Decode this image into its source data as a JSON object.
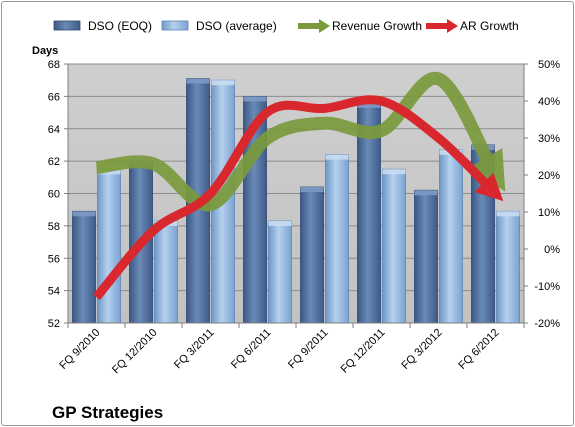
{
  "chart_data": {
    "type": "bar",
    "title": "",
    "caption": "GP Strategies",
    "categories": [
      "FQ 9/2010",
      "FQ 12/2010",
      "FQ 3/2011",
      "FQ 6/2011",
      "FQ 9/2011",
      "FQ 12/2011",
      "FQ 3/2012",
      "FQ 6/2012"
    ],
    "series": [
      {
        "name": "DSO (EOQ)",
        "kind": "bar",
        "axis": "left",
        "color": "#4f6f9f",
        "values": [
          58.9,
          62.0,
          67.1,
          66.0,
          60.4,
          65.6,
          60.2,
          63.0
        ]
      },
      {
        "name": "DSO (average)",
        "kind": "bar",
        "axis": "left",
        "color": "#8fb4dd",
        "values": [
          61.5,
          58.3,
          67.0,
          58.3,
          62.4,
          61.5,
          62.7,
          58.9
        ]
      },
      {
        "name": "Revenue Growth",
        "kind": "line",
        "axis": "right",
        "color": "#7a9a3c",
        "values": [
          0.22,
          0.23,
          0.12,
          0.3,
          0.34,
          0.32,
          0.46,
          0.2
        ]
      },
      {
        "name": "AR Growth",
        "kind": "line",
        "axis": "right",
        "color": "#d9272e",
        "values": [
          -0.13,
          0.05,
          0.15,
          0.37,
          0.38,
          0.4,
          0.3,
          0.15
        ]
      }
    ],
    "left_axis": {
      "label": "Days",
      "min": 52,
      "max": 68,
      "step": 2,
      "ticks": [
        "52",
        "54",
        "56",
        "58",
        "60",
        "62",
        "64",
        "66",
        "68"
      ]
    },
    "right_axis": {
      "label": "",
      "min": -0.2,
      "max": 0.5,
      "step": 0.1,
      "ticks": [
        "-20%",
        "-10%",
        "0%",
        "10%",
        "20%",
        "30%",
        "40%",
        "50%"
      ]
    },
    "grid": true,
    "legend_position": "top"
  }
}
